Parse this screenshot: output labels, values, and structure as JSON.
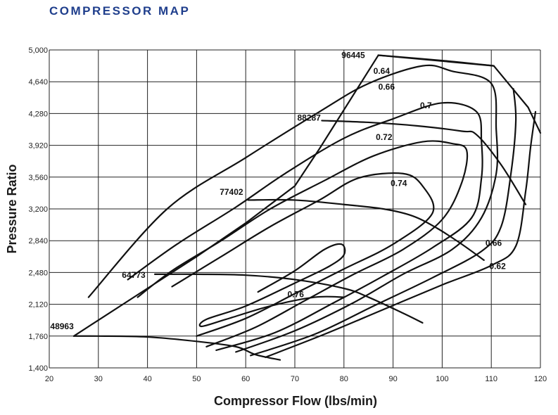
{
  "title": "COMPRESSOR MAP",
  "colors": {
    "title": "#1f3e8c",
    "lines": "#111111",
    "grid": "#222222"
  },
  "chart_data": {
    "type": "line",
    "title": "COMPRESSOR MAP",
    "xlabel": "Compressor Flow (lbs/min)",
    "ylabel": "Pressure Ratio",
    "xlim": [
      20,
      120
    ],
    "ylim": [
      1.4,
      5.0
    ],
    "grid": true,
    "x_ticks": [
      "20",
      "30",
      "40",
      "50",
      "60",
      "70",
      "80",
      "90",
      "100",
      "110",
      "120"
    ],
    "y_ticks": [
      "1,400",
      "1,760",
      "2,120",
      "2,480",
      "2,840",
      "3,200",
      "3,560",
      "3,920",
      "4,280",
      "4,640",
      "5,000"
    ],
    "surge_line": [
      [
        25,
        1.76
      ],
      [
        30,
        1.94
      ],
      [
        40,
        2.3
      ],
      [
        50,
        2.66
      ],
      [
        60,
        3.04
      ],
      [
        70,
        3.46
      ],
      [
        75,
        3.88
      ],
      [
        87,
        4.94
      ]
    ],
    "choke_line": [
      [
        87,
        4.94
      ],
      [
        110.5,
        4.82
      ],
      [
        117.5,
        4.35
      ],
      [
        120,
        4.06
      ]
    ],
    "speed_lines": [
      {
        "name": "48963",
        "points": [
          [
            25,
            1.76
          ],
          [
            30,
            1.76
          ],
          [
            40,
            1.75
          ],
          [
            50,
            1.7
          ],
          [
            58,
            1.64
          ],
          [
            62,
            1.55
          ],
          [
            67,
            1.49
          ]
        ]
      },
      {
        "name": "64773",
        "points": [
          [
            41.5,
            2.46
          ],
          [
            50,
            2.46
          ],
          [
            60,
            2.45
          ],
          [
            70,
            2.4
          ],
          [
            80,
            2.3
          ],
          [
            85,
            2.2
          ],
          [
            92,
            2.02
          ],
          [
            96,
            1.91
          ]
        ]
      },
      {
        "name": "77402",
        "points": [
          [
            60.5,
            3.3
          ],
          [
            70,
            3.3
          ],
          [
            80,
            3.25
          ],
          [
            88,
            3.2
          ],
          [
            94,
            3.12
          ],
          [
            99,
            2.98
          ],
          [
            104,
            2.8
          ],
          [
            108.5,
            2.62
          ]
        ]
      },
      {
        "name": "88287",
        "points": [
          [
            75.5,
            4.2
          ],
          [
            85,
            4.18
          ],
          [
            95,
            4.14
          ],
          [
            104,
            4.08
          ],
          [
            107,
            4.04
          ],
          [
            112,
            3.7
          ],
          [
            117,
            3.25
          ]
        ]
      },
      {
        "name": "96445",
        "points": [
          [
            87,
            4.94
          ],
          [
            100,
            4.88
          ],
          [
            110.5,
            4.82
          ]
        ]
      }
    ],
    "efficiency_islands": [
      {
        "label": "0.76",
        "points": [
          [
            62.5,
            2.26
          ],
          [
            70,
            2.5
          ],
          [
            76,
            2.74
          ],
          [
            79.5,
            2.8
          ],
          [
            80,
            2.68
          ],
          [
            77,
            2.55
          ],
          [
            70,
            2.36
          ],
          [
            60,
            2.1
          ],
          [
            52,
            1.95
          ],
          [
            51,
            1.87
          ],
          [
            56,
            1.95
          ],
          [
            65,
            2.1
          ],
          [
            74,
            2.2
          ],
          [
            80,
            2.2
          ]
        ]
      },
      {
        "label": "0.74",
        "points": [
          [
            50,
            1.76
          ],
          [
            60,
            1.96
          ],
          [
            70,
            2.24
          ],
          [
            80,
            2.52
          ],
          [
            90,
            2.8
          ],
          [
            98,
            3.15
          ],
          [
            96,
            3.46
          ],
          [
            92,
            3.6
          ],
          [
            83,
            3.55
          ],
          [
            75,
            3.3
          ],
          [
            65,
            3.0
          ],
          [
            55,
            2.66
          ],
          [
            45,
            2.32
          ]
        ]
      },
      {
        "label": "0.72",
        "points": [
          [
            52,
            1.64
          ],
          [
            62,
            1.86
          ],
          [
            72,
            2.16
          ],
          [
            82,
            2.46
          ],
          [
            92,
            2.74
          ],
          [
            100,
            3.08
          ],
          [
            104,
            3.5
          ],
          [
            105,
            3.86
          ],
          [
            102,
            3.94
          ],
          [
            96,
            3.96
          ],
          [
            86,
            3.8
          ],
          [
            76,
            3.52
          ],
          [
            65,
            3.2
          ],
          [
            55,
            2.84
          ],
          [
            45,
            2.5
          ],
          [
            38,
            2.2
          ]
        ]
      },
      {
        "label": "0.7",
        "points": [
          [
            54,
            1.6
          ],
          [
            66,
            1.8
          ],
          [
            78,
            2.14
          ],
          [
            88,
            2.44
          ],
          [
            98,
            2.76
          ],
          [
            106,
            3.1
          ],
          [
            108,
            3.55
          ],
          [
            108,
            3.96
          ],
          [
            107,
            4.3
          ],
          [
            100,
            4.4
          ],
          [
            90,
            4.22
          ],
          [
            80,
            4.0
          ],
          [
            68,
            3.6
          ],
          [
            58,
            3.22
          ],
          [
            46,
            2.8
          ],
          [
            36,
            2.4
          ]
        ]
      },
      {
        "label": "0.66",
        "points": [
          [
            58,
            1.58
          ],
          [
            70,
            1.82
          ],
          [
            82,
            2.14
          ],
          [
            92,
            2.46
          ],
          [
            102,
            2.74
          ],
          [
            108,
            3.1
          ],
          [
            111,
            3.6
          ],
          [
            111,
            4.1
          ],
          [
            110,
            4.62
          ],
          [
            102,
            4.76
          ],
          [
            96,
            4.82
          ],
          [
            85,
            4.62
          ],
          [
            75,
            4.3
          ],
          [
            60,
            3.78
          ],
          [
            44,
            3.2
          ],
          [
            28,
            2.2
          ]
        ]
      },
      {
        "label": "0.64",
        "points": [
          [
            61,
            1.54
          ],
          [
            74,
            1.78
          ],
          [
            86,
            2.1
          ],
          [
            98,
            2.42
          ],
          [
            108,
            2.72
          ],
          [
            112,
            3.0
          ],
          [
            114,
            3.6
          ],
          [
            115,
            4.2
          ],
          [
            114.5,
            4.56
          ]
        ]
      },
      {
        "label": "0.62",
        "points": [
          [
            64,
            1.52
          ],
          [
            76,
            1.78
          ],
          [
            88,
            2.06
          ],
          [
            100,
            2.34
          ],
          [
            110,
            2.56
          ],
          [
            115,
            2.78
          ],
          [
            117,
            3.4
          ],
          [
            118,
            3.9
          ],
          [
            119,
            4.3
          ]
        ]
      }
    ],
    "annotations": [
      {
        "text": "96445",
        "x": 79.5,
        "y": 4.91
      },
      {
        "text": "88287",
        "x": 70.5,
        "y": 4.2
      },
      {
        "text": "77402",
        "x": 54.7,
        "y": 3.36
      },
      {
        "text": "64773",
        "x": 34.8,
        "y": 2.42
      },
      {
        "text": "48963",
        "x": 20.2,
        "y": 1.84
      },
      {
        "text": "0.64",
        "x": 86,
        "y": 4.73
      },
      {
        "text": "0.66",
        "x": 87,
        "y": 4.55
      },
      {
        "text": "0.7",
        "x": 95.5,
        "y": 4.34
      },
      {
        "text": "0.72",
        "x": 86.5,
        "y": 3.98
      },
      {
        "text": "0.74",
        "x": 89.5,
        "y": 3.46
      },
      {
        "text": "0.66",
        "x": 108.8,
        "y": 2.78
      },
      {
        "text": "0.62",
        "x": 109.6,
        "y": 2.52
      },
      {
        "text": "0.76",
        "x": 68.5,
        "y": 2.2
      }
    ]
  }
}
